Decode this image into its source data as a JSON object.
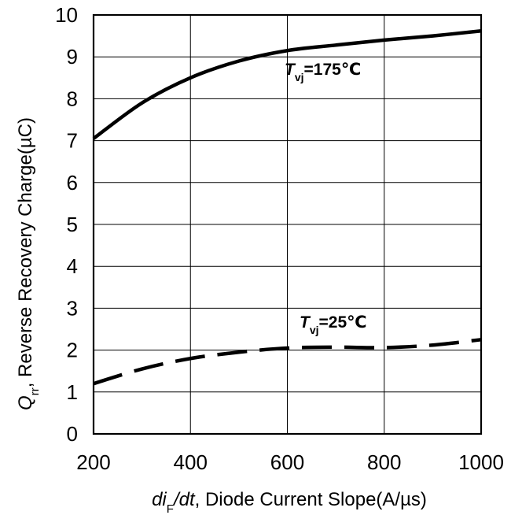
{
  "chart_data": {
    "type": "line",
    "title": "",
    "xlabel": {
      "italic_part": "di",
      "subscript": "F",
      "italic_tail": "/dt",
      "rest": ", Diode Current Slope(A/µs)"
    },
    "ylabel": {
      "italic_part": "Q",
      "subscript": "rr",
      "rest": ", Reverse Recovery Charge(µC)"
    },
    "xlim": [
      200,
      1000
    ],
    "ylim": [
      0,
      10
    ],
    "x_ticks": [
      "200",
      "400",
      "600",
      "800",
      "1000"
    ],
    "y_ticks": [
      "0",
      "1",
      "2",
      "3",
      "4",
      "5",
      "6",
      "7",
      "8",
      "9",
      "10"
    ],
    "grid": true,
    "series": [
      {
        "name": "Tvj=175℃",
        "label_parts": {
          "main": "T",
          "subscript": "vj",
          "rest": "=175℃"
        },
        "line_style": "solid",
        "color": "#000000",
        "x": [
          200,
          300,
          400,
          500,
          600,
          700,
          800,
          900,
          1000
        ],
        "y": [
          7.05,
          7.9,
          8.5,
          8.9,
          9.15,
          9.28,
          9.4,
          9.5,
          9.62
        ]
      },
      {
        "name": "Tvj=25℃",
        "label_parts": {
          "main": "T",
          "subscript": "vj",
          "rest": "=25℃"
        },
        "line_style": "dashed",
        "color": "#000000",
        "x": [
          200,
          300,
          400,
          500,
          600,
          700,
          800,
          900,
          1000
        ],
        "y": [
          1.2,
          1.55,
          1.8,
          1.95,
          2.05,
          2.07,
          2.06,
          2.12,
          2.25
        ]
      }
    ]
  }
}
